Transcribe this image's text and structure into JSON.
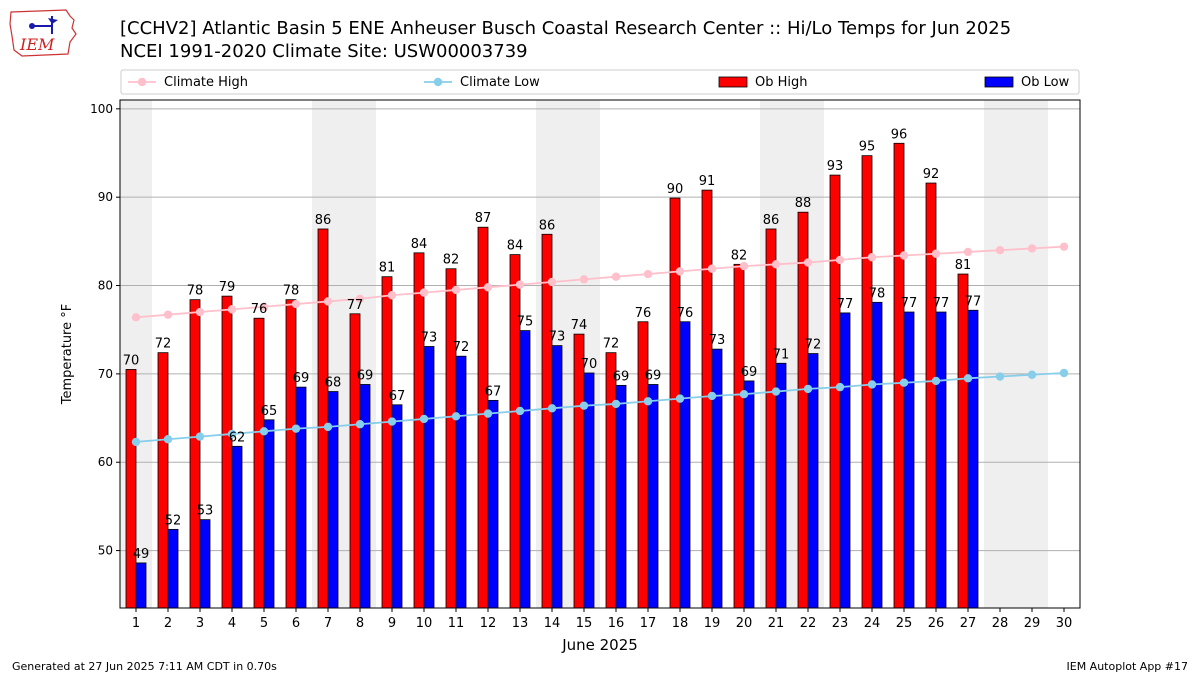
{
  "header": {
    "title": "[CCHV2] Atlantic Basin 5 ENE Anheuser Busch Coastal Research Center :: Hi/Lo Temps for Jun 2025",
    "subtitle": "NCEI 1991-2020 Climate Site: USW00003739",
    "logo_text": "IEM"
  },
  "footer": {
    "generated": "Generated at 27 Jun 2025 7:11 AM CDT in 0.70s",
    "app": "IEM Autoplot App #17"
  },
  "colors": {
    "ob_high": "#ff0000",
    "ob_low": "#0000ff",
    "climate_high": "#ffc0cb",
    "climate_low": "#87ceeb",
    "weekend_shade": "#efefef",
    "grid": "#b0b0b0"
  },
  "chart_data": {
    "type": "bar",
    "xlabel": "June 2025",
    "ylabel": "Temperature °F",
    "ylim": [
      43.5,
      101
    ],
    "yticks": [
      50,
      60,
      70,
      80,
      90,
      100
    ],
    "grid": "horizontal",
    "legend_placement": "top",
    "days": [
      1,
      2,
      3,
      4,
      5,
      6,
      7,
      8,
      9,
      10,
      11,
      12,
      13,
      14,
      15,
      16,
      17,
      18,
      19,
      20,
      21,
      22,
      23,
      24,
      25,
      26,
      27,
      28,
      29,
      30
    ],
    "shaded_days": [
      1,
      7,
      8,
      14,
      15,
      21,
      22,
      28,
      29
    ],
    "series": [
      {
        "name": "Climate High",
        "kind": "line",
        "values": [
          76.4,
          76.7,
          77.0,
          77.3,
          77.6,
          77.9,
          78.2,
          78.5,
          78.9,
          79.2,
          79.5,
          79.8,
          80.1,
          80.4,
          80.7,
          81.0,
          81.3,
          81.6,
          81.9,
          82.2,
          82.4,
          82.6,
          82.9,
          83.2,
          83.4,
          83.6,
          83.8,
          84.0,
          84.2,
          84.4
        ]
      },
      {
        "name": "Climate Low",
        "kind": "line",
        "values": [
          62.3,
          62.6,
          62.9,
          63.2,
          63.5,
          63.8,
          64.0,
          64.3,
          64.6,
          64.9,
          65.2,
          65.5,
          65.8,
          66.1,
          66.4,
          66.6,
          66.9,
          67.2,
          67.5,
          67.7,
          68.0,
          68.3,
          68.5,
          68.8,
          69.0,
          69.2,
          69.5,
          69.7,
          69.9,
          70.1
        ]
      },
      {
        "name": "Ob High",
        "kind": "bar",
        "values": [
          70.5,
          72.4,
          78.4,
          78.8,
          76.3,
          78.4,
          86.4,
          76.8,
          81.0,
          83.7,
          81.9,
          86.6,
          83.5,
          85.8,
          74.5,
          72.4,
          75.9,
          89.9,
          90.8,
          82.4,
          86.4,
          88.3,
          92.5,
          94.7,
          96.1,
          91.6,
          81.3
        ],
        "labels": [
          "70",
          "72",
          "78",
          "79",
          "76",
          "78",
          "86",
          "77",
          "81",
          "84",
          "82",
          "87",
          "84",
          "86",
          "74",
          "72",
          "76",
          "90",
          "91",
          "82",
          "86",
          "88",
          "93",
          "95",
          "96",
          "92",
          "81"
        ]
      },
      {
        "name": "Ob Low",
        "kind": "bar",
        "values": [
          48.6,
          52.4,
          53.5,
          61.8,
          64.8,
          68.5,
          68.0,
          68.8,
          66.5,
          73.1,
          72.0,
          67.0,
          74.9,
          73.2,
          70.1,
          68.7,
          68.8,
          75.9,
          72.8,
          69.2,
          71.2,
          72.3,
          76.9,
          78.1,
          77.0,
          77.0,
          77.2
        ],
        "labels": [
          "49",
          "52",
          "53",
          "62",
          "65",
          "69",
          "68",
          "69",
          "67",
          "73",
          "72",
          "67",
          "75",
          "73",
          "70",
          "69",
          "69",
          "76",
          "73",
          "69",
          "71",
          "72",
          "77",
          "78",
          "77",
          "77",
          "77"
        ]
      }
    ]
  }
}
